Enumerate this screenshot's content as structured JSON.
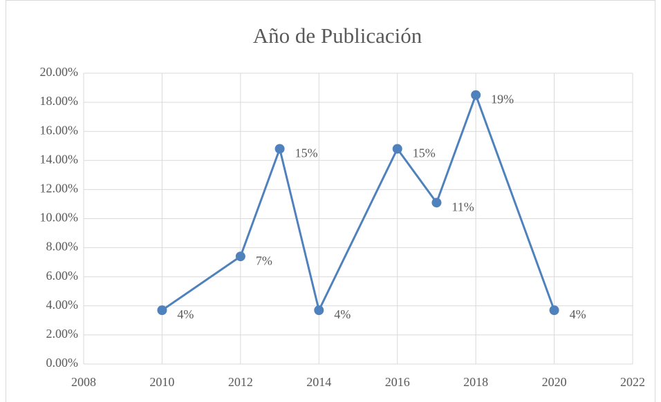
{
  "chart_data": {
    "type": "line",
    "title": "Año de Publicación",
    "x": [
      2010,
      2012,
      2013,
      2014,
      2016,
      2017,
      2018,
      2020
    ],
    "series": [
      {
        "name": "Año de Publicación",
        "color": "#4f81bd",
        "values": [
          3.7,
          7.4,
          14.8,
          3.7,
          14.8,
          11.1,
          18.5,
          3.7
        ],
        "value_labels": [
          "4%",
          "7%",
          "15%",
          "4%",
          "15%",
          "11%",
          "19%",
          "4%"
        ]
      }
    ],
    "xlim": [
      2008,
      2022
    ],
    "xticks": [
      2008,
      2010,
      2012,
      2014,
      2016,
      2018,
      2020,
      2022
    ],
    "ylim": [
      0,
      20
    ],
    "yticks": [
      {
        "value": 0,
        "label": "0.00%"
      },
      {
        "value": 2,
        "label": "2.00%"
      },
      {
        "value": 4,
        "label": "4.00%"
      },
      {
        "value": 6,
        "label": "6.00%"
      },
      {
        "value": 8,
        "label": "8.00%"
      },
      {
        "value": 10,
        "label": "10.00%"
      },
      {
        "value": 12,
        "label": "12.00%"
      },
      {
        "value": 14,
        "label": "14.00%"
      },
      {
        "value": 16,
        "label": "16.00%"
      },
      {
        "value": 18,
        "label": "18.00%"
      },
      {
        "value": 20,
        "label": "20.00%"
      }
    ],
    "grid": true
  }
}
